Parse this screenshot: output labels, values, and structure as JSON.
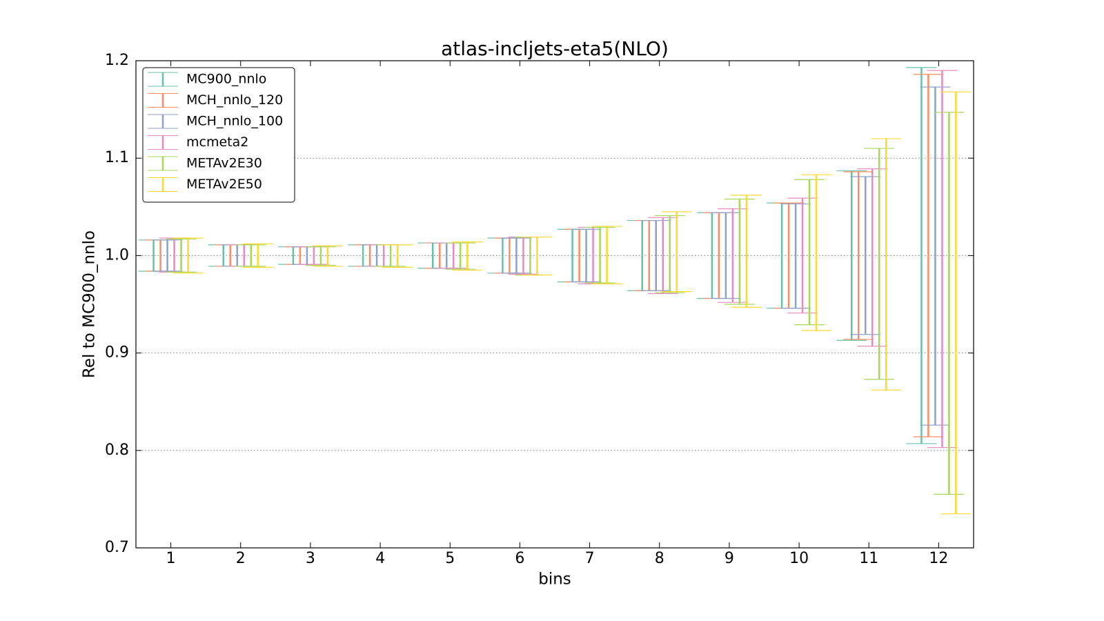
{
  "chart_data": {
    "type": "errorbar",
    "title": "atlas-incljets-eta5(NLO)",
    "x_label": "bins",
    "y_label": "Rel to MC900_nnlo",
    "x": [
      1,
      2,
      3,
      4,
      5,
      6,
      7,
      8,
      9,
      10,
      11,
      12
    ],
    "xlim": [
      0.5,
      12.5
    ],
    "xticks": [
      1,
      2,
      3,
      4,
      5,
      6,
      7,
      8,
      9,
      10,
      11,
      12
    ],
    "ylim": [
      0.7,
      1.2
    ],
    "yticks": [
      0.7,
      0.8,
      0.9,
      {
        "value": 1,
        "label": "1.0"
      },
      1.1,
      1.2
    ],
    "grid": true,
    "legend": "upper-left",
    "series": [
      {
        "name": "MC900_nnlo",
        "color": "#66c2a5",
        "lower": [
          0.984,
          0.989,
          0.991,
          0.989,
          0.987,
          0.982,
          0.973,
          0.964,
          0.956,
          0.946,
          0.913,
          0.807
        ],
        "upper": [
          1.016,
          1.011,
          1.009,
          1.011,
          1.013,
          1.018,
          1.027,
          1.036,
          1.044,
          1.054,
          1.087,
          1.193
        ]
      },
      {
        "name": "MCH_nnlo_120",
        "color": "#fc8d62",
        "lower": [
          0.984,
          0.989,
          0.991,
          0.989,
          0.987,
          0.982,
          0.973,
          0.964,
          0.956,
          0.946,
          0.914,
          0.814
        ],
        "upper": [
          1.016,
          1.011,
          1.009,
          1.011,
          1.013,
          1.018,
          1.027,
          1.036,
          1.044,
          1.054,
          1.086,
          1.186
        ]
      },
      {
        "name": "MCH_nnlo_100",
        "color": "#8da0cb",
        "lower": [
          0.984,
          0.989,
          0.991,
          0.989,
          0.987,
          0.982,
          0.973,
          0.964,
          0.956,
          0.946,
          0.919,
          0.826
        ],
        "upper": [
          1.016,
          1.011,
          1.009,
          1.011,
          1.013,
          1.018,
          1.027,
          1.036,
          1.044,
          1.053,
          1.081,
          1.173
        ]
      },
      {
        "name": "mcmeta2",
        "color": "#e78ac3",
        "lower": [
          0.983,
          0.989,
          0.991,
          0.989,
          0.987,
          0.981,
          0.971,
          0.961,
          0.952,
          0.941,
          0.907,
          0.803
        ],
        "upper": [
          1.018,
          1.011,
          1.009,
          1.011,
          1.013,
          1.019,
          1.029,
          1.039,
          1.048,
          1.059,
          1.089,
          1.19
        ]
      },
      {
        "name": "METAv2E30",
        "color": "#a6d854",
        "lower": [
          0.983,
          0.989,
          0.99,
          0.989,
          0.986,
          0.98,
          0.972,
          0.962,
          0.95,
          0.929,
          0.873,
          0.755
        ],
        "upper": [
          1.017,
          1.011,
          1.009,
          1.011,
          1.013,
          1.019,
          1.029,
          1.041,
          1.058,
          1.078,
          1.11,
          1.147
        ]
      },
      {
        "name": "METAv2E50",
        "color": "#ffd92f",
        "lower": [
          0.982,
          0.988,
          0.989,
          0.988,
          0.985,
          0.98,
          0.971,
          0.963,
          0.947,
          0.923,
          0.862,
          0.735
        ],
        "upper": [
          1.018,
          1.012,
          1.01,
          1.011,
          1.014,
          1.019,
          1.03,
          1.045,
          1.062,
          1.083,
          1.12,
          1.168
        ]
      }
    ]
  }
}
